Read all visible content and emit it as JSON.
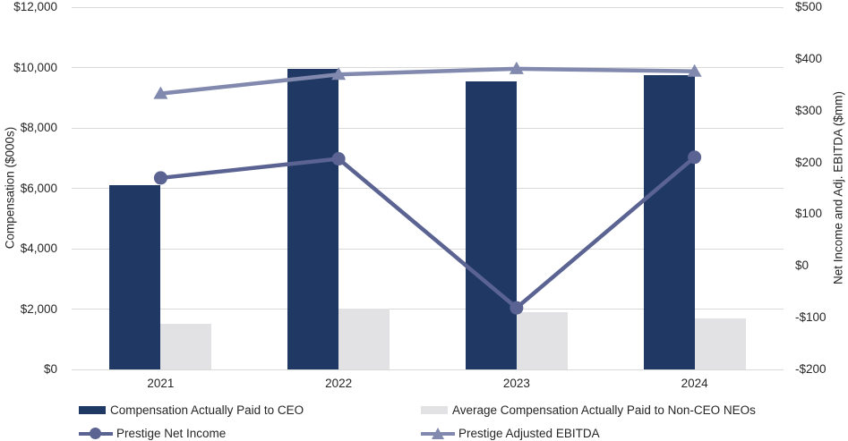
{
  "chart_data": {
    "type": "combo-bar-line",
    "title": "",
    "categories": [
      "2021",
      "2022",
      "2023",
      "2024"
    ],
    "series": [
      {
        "name": "Compensation Actually Paid to CEO",
        "type": "bar",
        "axis": "left",
        "color": "#1f3864",
        "values": [
          6100,
          9950,
          9550,
          9750
        ]
      },
      {
        "name": "Average Compensation Actually Paid to Non-CEO NEOs",
        "type": "bar",
        "axis": "left",
        "color": "#e2e2e5",
        "values": [
          1500,
          2025,
          1900,
          1675
        ]
      },
      {
        "name": "Prestige Net Income",
        "type": "line",
        "marker": "circle",
        "axis": "right",
        "color": "#5a6391",
        "values": [
          170,
          207,
          -81,
          210
        ]
      },
      {
        "name": "Prestige Adjusted EBITDA",
        "type": "line",
        "marker": "triangle",
        "axis": "right",
        "color": "#8289ae",
        "values": [
          333,
          370,
          381,
          376
        ]
      }
    ],
    "left_axis": {
      "title": "Compensation ($000s)",
      "min": 0,
      "max": 12000,
      "step": 2000,
      "tick_values": [
        0,
        2000,
        4000,
        6000,
        8000,
        10000,
        12000
      ],
      "tick_labels": [
        "$0",
        "$2,000",
        "$4,000",
        "$6,000",
        "$8,000",
        "$10,000",
        "$12,000"
      ]
    },
    "right_axis": {
      "title": "Net Income and Adj. EBITDA ($mm)",
      "min": -200,
      "max": 500,
      "step": 100,
      "tick_values": [
        -200,
        -100,
        0,
        100,
        200,
        300,
        400,
        500
      ],
      "tick_labels": [
        "-$200",
        "-$100",
        "$0",
        "$100",
        "$200",
        "$300",
        "$400",
        "$500"
      ]
    },
    "grid": "horizontal-on-left-ticks",
    "legend_position": "bottom",
    "legend_layout": {
      "columns": [
        [
          0,
          2
        ],
        [
          1,
          3
        ]
      ]
    },
    "colors": {
      "gridline": "#d9d9d9",
      "text": "#262626",
      "background": "#ffffff"
    }
  }
}
